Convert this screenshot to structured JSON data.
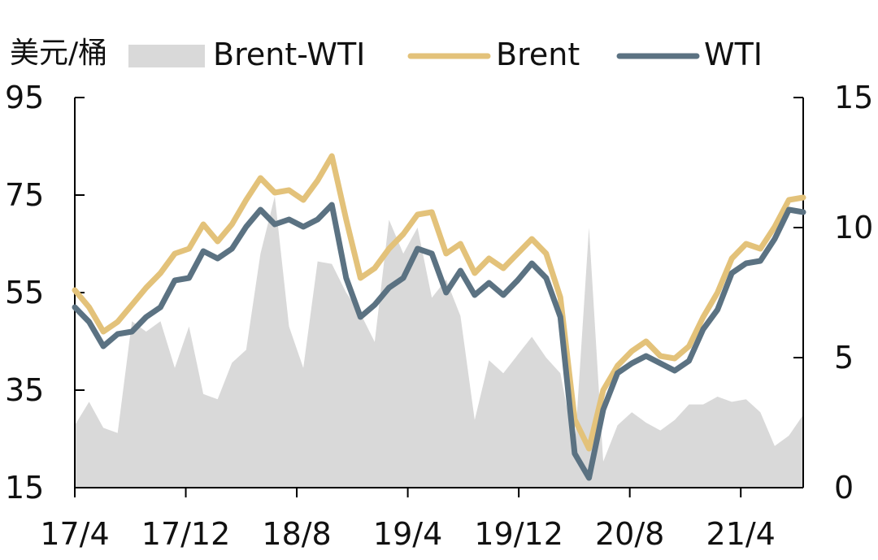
{
  "chart_data": {
    "type": "line",
    "unit_label": "美元/桶",
    "x_tick_labels": [
      "17/4",
      "17/12",
      "18/8",
      "19/4",
      "19/12",
      "20/8",
      "21/4"
    ],
    "x_tick_index": [
      0,
      8,
      16,
      24,
      32,
      40,
      48
    ],
    "x": [
      "17/4",
      "17/5",
      "17/6",
      "17/7",
      "17/8",
      "17/9",
      "17/10",
      "17/11",
      "17/12",
      "18/1",
      "18/2",
      "18/3",
      "18/4",
      "18/5",
      "18/6",
      "18/7",
      "18/8",
      "18/9",
      "18/10",
      "18/11",
      "18/12",
      "19/1",
      "19/2",
      "19/3",
      "19/4",
      "19/5",
      "19/6",
      "19/7",
      "19/8",
      "19/9",
      "19/10",
      "19/11",
      "19/12",
      "20/1",
      "20/2",
      "20/3",
      "20/4",
      "20/5",
      "20/6",
      "20/7",
      "20/8",
      "20/9",
      "20/10",
      "20/11",
      "20/12",
      "21/1",
      "21/2",
      "21/3",
      "21/4",
      "21/5",
      "21/6",
      "21/7"
    ],
    "left_axis": {
      "ylim": [
        15,
        95
      ],
      "ticks": [
        15,
        35,
        55,
        75,
        95
      ]
    },
    "right_axis": {
      "ylim": [
        0,
        15
      ],
      "ticks": [
        0,
        5,
        10,
        15
      ]
    },
    "series": [
      {
        "name": "Brent-WTI",
        "type": "area",
        "axis": "right",
        "color": "#d9d9d9",
        "values": [
          2.4,
          3.3,
          2.3,
          2.1,
          6.4,
          6.0,
          6.4,
          4.6,
          6.2,
          3.6,
          3.4,
          4.8,
          5.3,
          9.0,
          11.2,
          6.2,
          4.6,
          8.7,
          8.6,
          7.5,
          6.7,
          5.6,
          10.3,
          9.0,
          10.0,
          7.3,
          8.0,
          6.6,
          2.6,
          4.9,
          4.4,
          5.1,
          5.8,
          5.0,
          4.4,
          1.5,
          10.0,
          1.0,
          2.4,
          2.9,
          2.5,
          2.2,
          2.6,
          3.2,
          3.2,
          3.5,
          3.3,
          3.4,
          2.9,
          1.6,
          2.0,
          2.8
        ]
      },
      {
        "name": "Brent",
        "type": "line",
        "axis": "left",
        "color": "#e3c27a",
        "values": [
          55.5,
          52.0,
          47.0,
          49.0,
          52.5,
          56.0,
          59.0,
          63.0,
          64.0,
          69.0,
          65.5,
          69.0,
          74.0,
          78.5,
          75.5,
          76.0,
          74.0,
          78.0,
          83.0,
          70.0,
          58.0,
          60.0,
          64.0,
          67.0,
          71.0,
          71.5,
          63.0,
          65.0,
          59.0,
          62.0,
          60.0,
          63.0,
          66.0,
          63.0,
          54.0,
          29.0,
          23.0,
          35.0,
          40.0,
          43.0,
          45.0,
          42.0,
          41.5,
          44.0,
          50.0,
          55.0,
          62.0,
          65.0,
          64.0,
          68.5,
          74.0,
          74.5
        ]
      },
      {
        "name": "WTI",
        "type": "line",
        "axis": "left",
        "color": "#5b7282",
        "values": [
          52.0,
          49.0,
          44.0,
          46.5,
          47.0,
          50.0,
          52.0,
          57.5,
          58.0,
          63.5,
          62.0,
          64.0,
          68.5,
          72.0,
          69.0,
          70.0,
          68.5,
          70.0,
          73.0,
          58.0,
          50.0,
          52.5,
          56.0,
          58.0,
          64.0,
          63.0,
          55.0,
          59.5,
          54.5,
          57.0,
          54.5,
          57.5,
          61.0,
          58.0,
          50.0,
          22.0,
          17.0,
          31.0,
          38.5,
          40.5,
          42.0,
          40.5,
          39.0,
          41.0,
          47.5,
          51.5,
          59.0,
          61.0,
          61.5,
          66.0,
          72.0,
          71.5
        ]
      }
    ],
    "grid": false,
    "legend_position": "top"
  }
}
